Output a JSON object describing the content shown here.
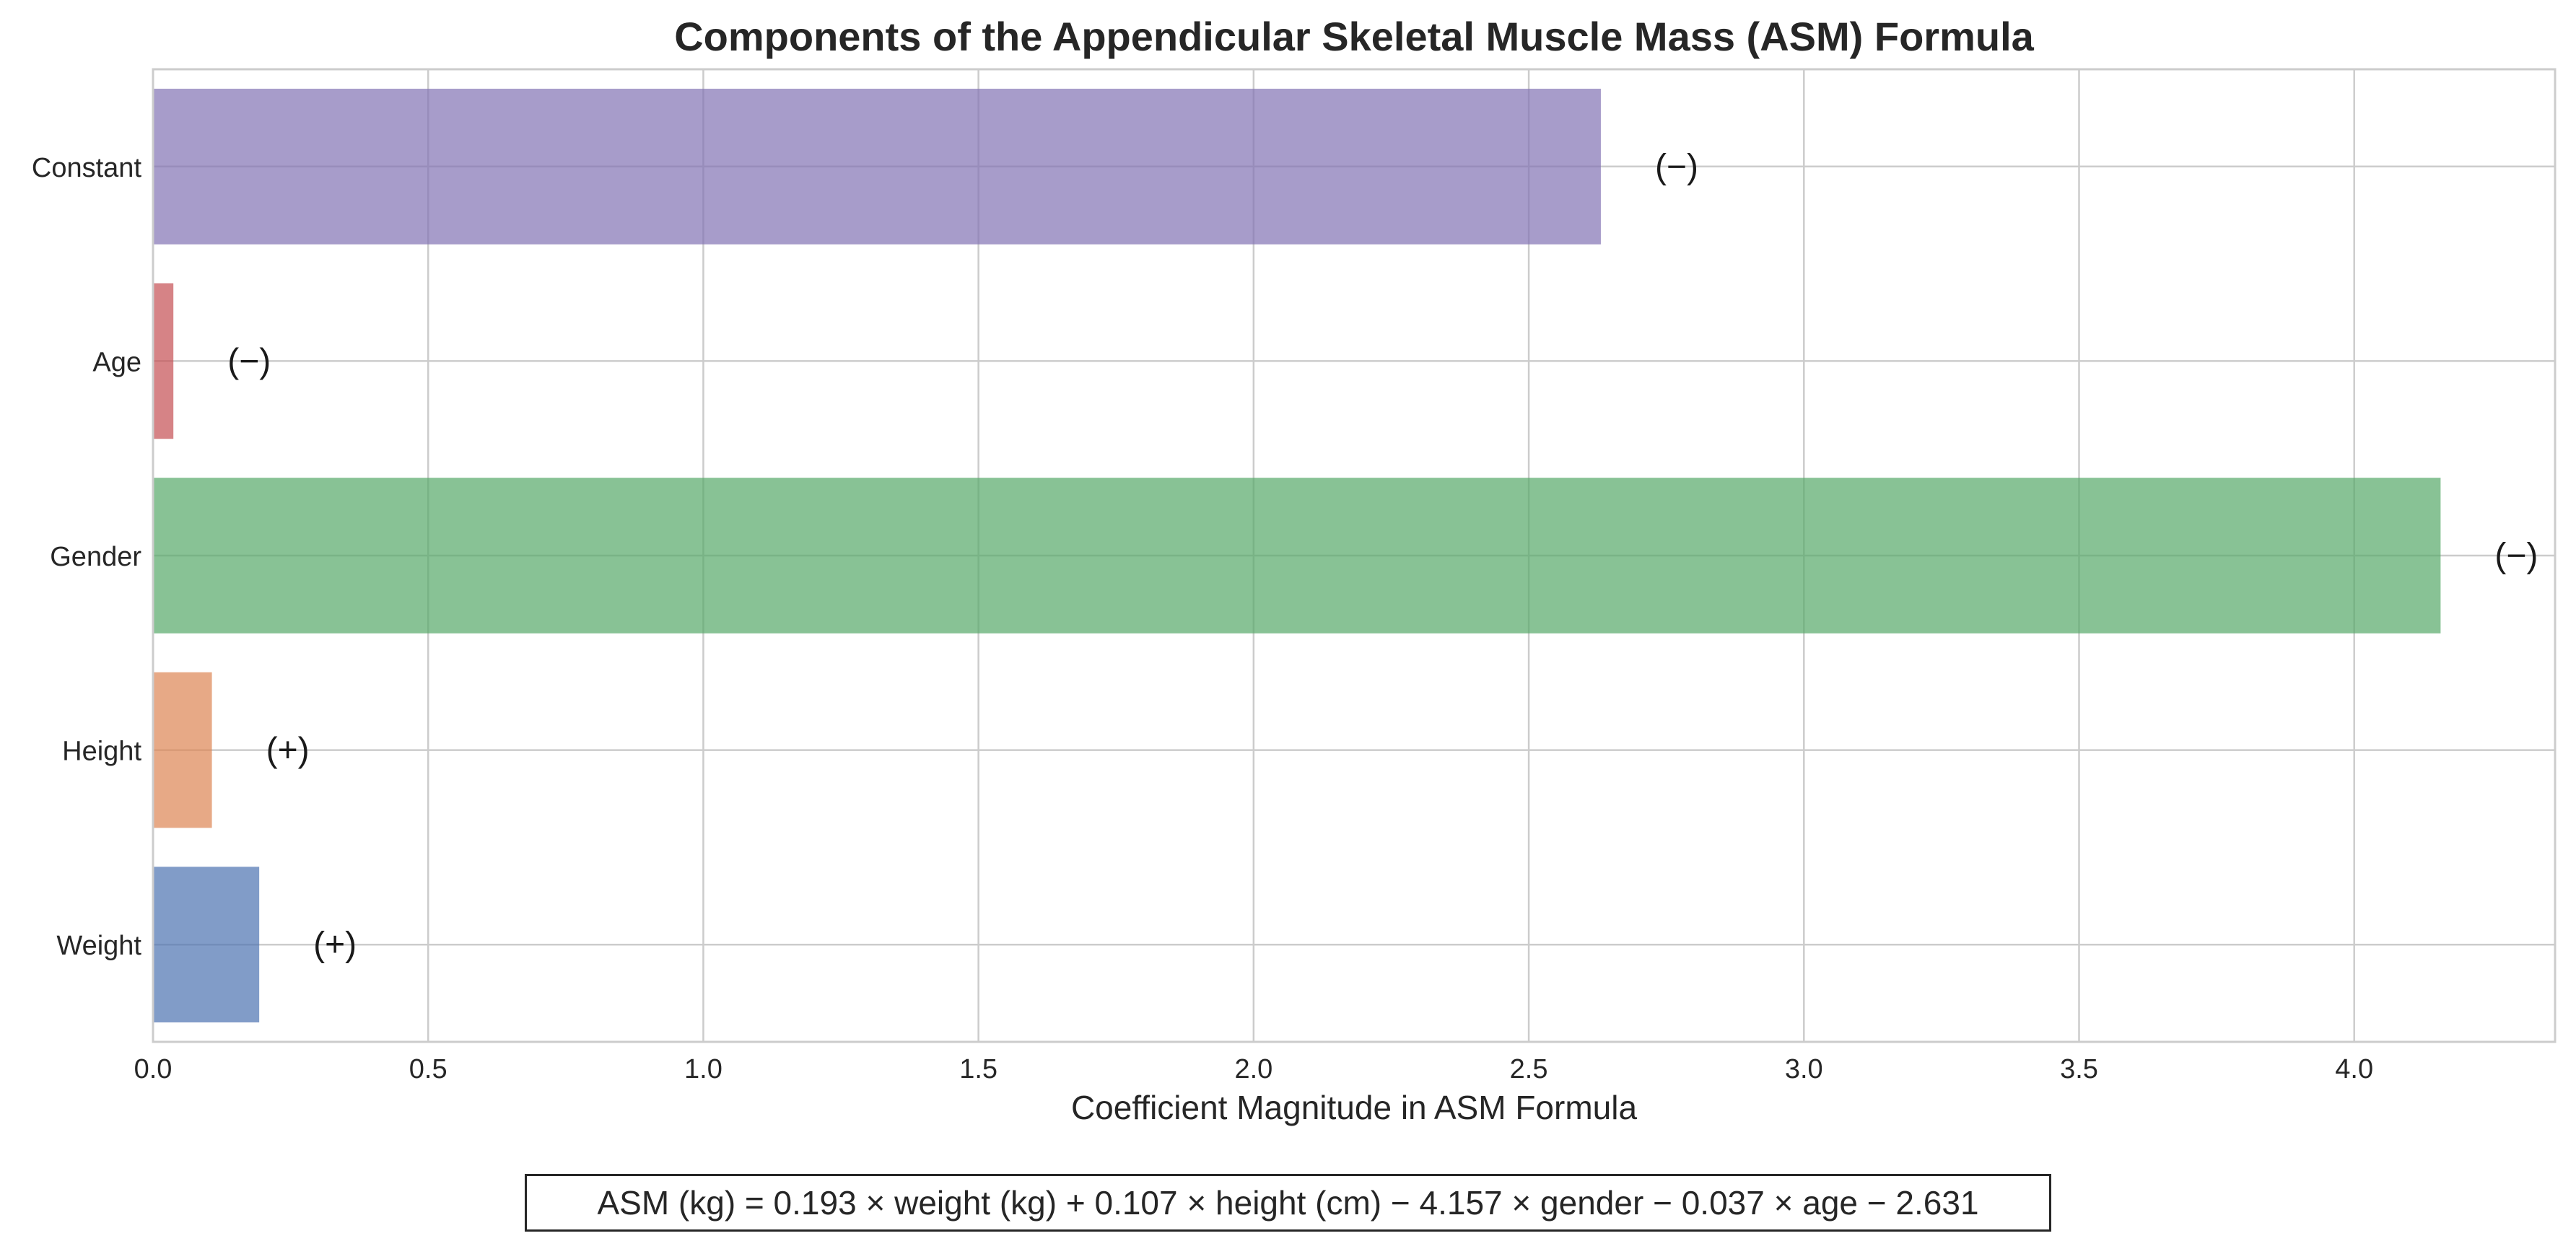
{
  "chart_data": {
    "type": "bar",
    "orientation": "horizontal",
    "title": "Components of the Appendicular Skeletal Muscle Mass (ASM) Formula",
    "xlabel": "Coefficient Magnitude in ASM Formula",
    "ylabel": "",
    "categories": [
      "Weight",
      "Height",
      "Gender",
      "Age",
      "Constant"
    ],
    "values": [
      0.193,
      0.107,
      4.157,
      0.037,
      2.631
    ],
    "signs": [
      "(+)",
      "(+)",
      "(−)",
      "(−)",
      "(−)"
    ],
    "colors": [
      "#4c72b0",
      "#dd8452",
      "#55a868",
      "#c44e52",
      "#8172b3"
    ],
    "xlim": [
      0,
      4.365
    ],
    "xticks": [
      0.0,
      0.5,
      1.0,
      1.5,
      2.0,
      2.5,
      3.0,
      3.5,
      4.0
    ],
    "xtick_labels": [
      "0.0",
      "0.5",
      "1.0",
      "1.5",
      "2.0",
      "2.5",
      "3.0",
      "3.5",
      "4.0"
    ],
    "grid": true,
    "formula": "ASM (kg) = 0.193 × weight (kg) + 0.107 × height (cm) − 4.157 × gender − 0.037 × age − 2.631"
  }
}
